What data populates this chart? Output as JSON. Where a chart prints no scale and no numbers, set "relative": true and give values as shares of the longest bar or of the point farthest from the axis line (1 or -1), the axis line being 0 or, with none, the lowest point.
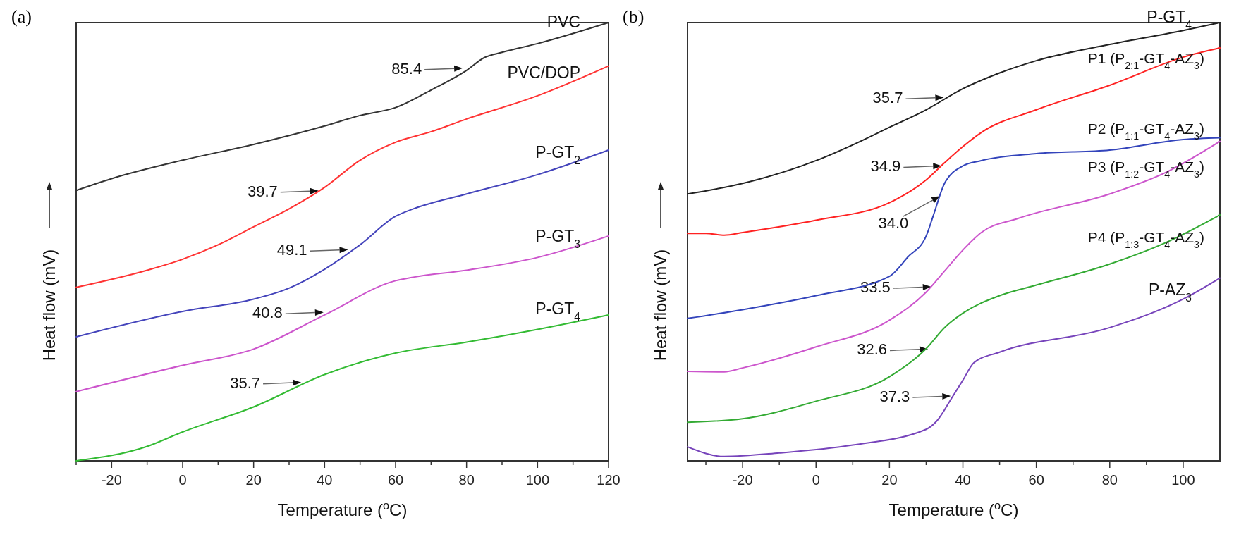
{
  "chart_data": [
    {
      "type": "line",
      "title": "(a)",
      "xlabel": "Temperature ($^{o}$C)",
      "ylabel": "Heat flow (mV)",
      "relative": true,
      "tick_labels": "x",
      "legend": false,
      "marker": "none",
      "line_style": "solid",
      "xlim": [
        -30,
        120
      ],
      "xticks": [
        {
          "value": -30,
          "label": null
        },
        -20,
        {
          "value": -10,
          "label": null
        },
        0,
        {
          "value": 10,
          "label": null
        },
        20,
        {
          "value": 30,
          "label": null
        },
        40,
        {
          "value": 50,
          "label": null
        },
        60,
        {
          "value": 70,
          "label": null
        },
        80,
        {
          "value": 90,
          "label": null
        },
        100,
        {
          "value": 110,
          "label": null
        },
        120
      ],
      "series": [
        {
          "name": "PVC",
          "color": "#333333",
          "x": [
            -30,
            -20,
            0,
            20,
            40,
            50,
            60,
            70,
            80,
            85,
            90,
            100,
            120
          ],
          "values": [
            0.617,
            0.644,
            0.686,
            0.722,
            0.764,
            0.788,
            0.806,
            0.846,
            0.891,
            0.92,
            0.932,
            0.952,
            1.0
          ]
        },
        {
          "name": "PVC/DOP",
          "color": "#ff3333",
          "x": [
            -30,
            -10,
            0,
            10,
            20,
            30,
            40,
            50,
            60,
            70,
            80,
            100,
            120
          ],
          "values": [
            0.396,
            0.435,
            0.46,
            0.493,
            0.534,
            0.575,
            0.624,
            0.686,
            0.727,
            0.751,
            0.78,
            0.833,
            0.901
          ]
        },
        {
          "name": "P-GT$_{2}$",
          "color": "#4444bb",
          "x": [
            -30,
            0,
            20,
            30,
            40,
            50,
            60,
            65,
            80,
            100,
            120
          ],
          "values": [
            0.283,
            0.341,
            0.369,
            0.394,
            0.437,
            0.493,
            0.558,
            0.575,
            0.609,
            0.653,
            0.709
          ]
        },
        {
          "name": "P-GT$_{3}$",
          "color": "#cc55cc",
          "x": [
            -30,
            0,
            20,
            40,
            60,
            65,
            80,
            100,
            120
          ],
          "values": [
            0.158,
            0.218,
            0.255,
            0.333,
            0.411,
            0.419,
            0.435,
            0.464,
            0.513
          ]
        },
        {
          "name": "P-GT$_{4}$",
          "color": "#33bb33",
          "x": [
            -30,
            -10,
            0,
            20,
            40,
            60,
            80,
            100,
            120
          ],
          "values": [
            0.0,
            0.033,
            0.066,
            0.123,
            0.197,
            0.246,
            0.271,
            0.3,
            0.333
          ]
        }
      ],
      "annotations": [
        {
          "text": "85.4",
          "x": 78.9,
          "y": 0.896
        },
        {
          "text": "39.7",
          "x": 38.3,
          "y": 0.616
        },
        {
          "text": "49.1",
          "x": 46.6,
          "y": 0.482
        },
        {
          "text": "40.8",
          "x": 39.7,
          "y": 0.339
        },
        {
          "text": "35.7",
          "x": 33.4,
          "y": 0.179
        }
      ]
    },
    {
      "type": "line",
      "title": "(b)",
      "xlabel": "Temperature ($^{o}$C)",
      "ylabel": "Heat flow (mV)",
      "relative": true,
      "tick_labels": "x",
      "legend": false,
      "marker": "none",
      "line_style": "solid",
      "xlim": [
        -35,
        110
      ],
      "xticks": [
        {
          "value": -30,
          "label": null
        },
        -20,
        {
          "value": -10,
          "label": null
        },
        0,
        {
          "value": 10,
          "label": null
        },
        20,
        {
          "value": 30,
          "label": null
        },
        40,
        {
          "value": 50,
          "label": null
        },
        60,
        {
          "value": 70,
          "label": null
        },
        80,
        {
          "value": 90,
          "label": null
        },
        100
      ],
      "series": [
        {
          "name": "P-GT$_{4}$",
          "color": "#222222",
          "x": [
            -35,
            -20,
            0,
            10,
            20,
            30,
            40,
            50,
            60,
            80,
            100,
            110
          ],
          "values": [
            0.609,
            0.633,
            0.685,
            0.721,
            0.761,
            0.801,
            0.849,
            0.885,
            0.913,
            0.95,
            0.982,
            1.0
          ]
        },
        {
          "name": "P1 (P$_{2:1}$-GT$_{4}$-AZ$_{3}$)",
          "color": "#ff2222",
          "x": [
            -35,
            -30,
            -25,
            -20,
            0,
            20,
            30,
            35,
            40,
            45,
            60,
            80,
            100,
            110
          ],
          "values": [
            0.519,
            0.519,
            0.515,
            0.521,
            0.549,
            0.589,
            0.641,
            0.68,
            0.717,
            0.749,
            0.801,
            0.857,
            0.921,
            0.942
          ]
        },
        {
          "name": "P2 (P$_{1:1}$-GT$_{4}$-AZ$_{3}$)",
          "color": "#3344bb",
          "x": [
            -35,
            -20,
            0,
            20,
            25,
            30,
            32,
            35,
            40,
            45,
            60,
            80,
            100,
            110
          ],
          "values": [
            0.325,
            0.345,
            0.377,
            0.421,
            0.465,
            0.513,
            0.561,
            0.633,
            0.673,
            0.685,
            0.701,
            0.709,
            0.733,
            0.737
          ]
        },
        {
          "name": "P3 (P$_{1:2}$-GT$_{4}$-AZ$_{3}$)",
          "color": "#cc55cc",
          "x": [
            -35,
            -25,
            -20,
            0,
            20,
            30,
            35,
            40,
            45,
            55,
            80,
            95,
            110
          ],
          "values": [
            0.204,
            0.203,
            0.212,
            0.26,
            0.321,
            0.385,
            0.433,
            0.481,
            0.521,
            0.553,
            0.609,
            0.657,
            0.729
          ]
        },
        {
          "name": "P4 (P$_{1:3}$-GT$_{4}$-AZ$_{3}$)",
          "color": "#33aa33",
          "x": [
            -35,
            -20,
            0,
            20,
            30,
            35,
            40,
            50,
            60,
            80,
            95,
            110
          ],
          "values": [
            0.088,
            0.096,
            0.136,
            0.192,
            0.256,
            0.304,
            0.337,
            0.377,
            0.401,
            0.449,
            0.497,
            0.561
          ]
        },
        {
          "name": "P-AZ$_{3}$",
          "color": "#7744bb",
          "x": [
            -35,
            -25,
            -10,
            10,
            30,
            33,
            37,
            40,
            43,
            50,
            80,
            100,
            110
          ],
          "values": [
            0.032,
            0.01,
            0.018,
            0.036,
            0.072,
            0.092,
            0.144,
            0.184,
            0.224,
            0.248,
            0.304,
            0.369,
            0.417
          ]
        }
      ],
      "annotations": [
        {
          "text": "35.7",
          "x": 34.8,
          "y": 0.829
        },
        {
          "text": "34.9",
          "x": 34.2,
          "y": 0.673
        },
        {
          "text": "34.0",
          "x": 33.8,
          "y": 0.604
        },
        {
          "text": "33.5",
          "x": 31.4,
          "y": 0.397
        },
        {
          "text": "32.6",
          "x": 30.5,
          "y": 0.255
        },
        {
          "text": "37.3",
          "x": 36.7,
          "y": 0.148
        }
      ]
    }
  ]
}
